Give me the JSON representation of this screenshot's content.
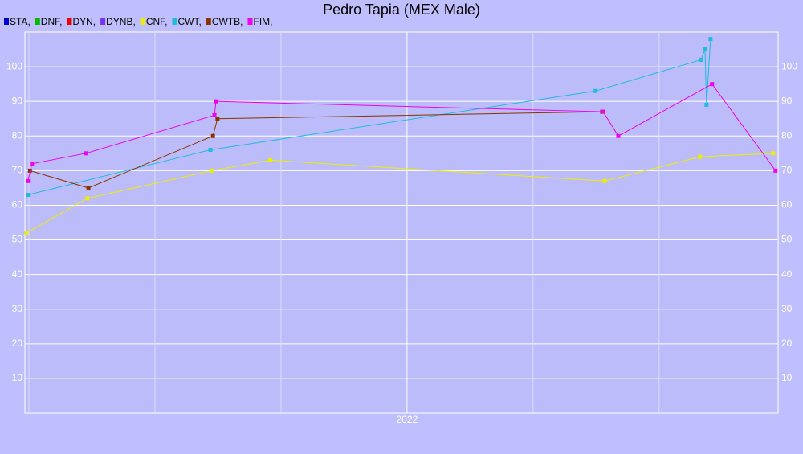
{
  "chart_data": {
    "type": "line",
    "title": "Pedro Tapia (MEX Male)",
    "xlim": [
      2021.242,
      2022.736
    ],
    "xticks": [
      2022
    ],
    "ylim": [
      0,
      110
    ],
    "yticks": [
      10,
      20,
      30,
      40,
      50,
      60,
      70,
      80,
      90,
      100
    ],
    "grid": true,
    "series": [
      {
        "name": "STA,",
        "color": "#0000cc",
        "x": [],
        "values": []
      },
      {
        "name": "DNF,",
        "color": "#00bb00",
        "x": [],
        "values": []
      },
      {
        "name": "DYN,",
        "color": "#ee0000",
        "x": [],
        "values": []
      },
      {
        "name": "DYNB,",
        "color": "#7733ee",
        "x": [],
        "values": []
      },
      {
        "name": "CNF,",
        "color": "#eeee00",
        "x": [
          2021.245,
          2021.366,
          2021.613,
          2021.729,
          2022.392,
          2022.581,
          2022.726
        ],
        "values": [
          52,
          62,
          70,
          73,
          67,
          74,
          75
        ]
      },
      {
        "name": "CWT,",
        "color": "#22bbdd",
        "x": [
          2021.248,
          2021.61,
          2022.374,
          2022.583,
          2022.591,
          2022.594,
          2022.602
        ],
        "values": [
          63,
          76,
          93,
          102,
          105,
          89,
          108
        ]
      },
      {
        "name": "CWTB,",
        "color": "#883300",
        "x": [
          2021.252,
          2021.368,
          2021.615,
          2021.624,
          2022.387
        ],
        "values": [
          70,
          65,
          80,
          85,
          87
        ]
      },
      {
        "name": "FIM,",
        "color": "#ee00ee",
        "x": [
          2021.248,
          2021.256,
          2021.363,
          2021.618,
          2021.621,
          2022.389,
          2022.419,
          2022.605,
          2022.731
        ],
        "values": [
          67,
          72,
          75,
          86,
          90,
          87,
          80,
          95,
          70
        ]
      }
    ]
  }
}
